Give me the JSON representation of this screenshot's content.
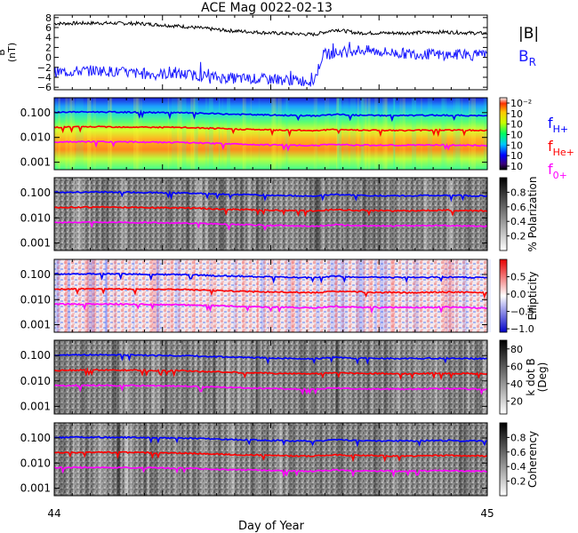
{
  "title": "ACE Mag 0022-02-13",
  "xlabel": "Day of Year",
  "x_ticks": [
    "44",
    "45"
  ],
  "colors": {
    "B_total": "#000000",
    "B_R": "#1a1aff",
    "f_Hplus": "#0000ff",
    "f_Heplus": "#ff0000",
    "f_Oplus": "#ff00ff"
  },
  "chart_data": [
    {
      "type": "line",
      "panel": "magnetic-field",
      "ylabel": "B\n(nT)",
      "ylabel_lines": [
        "B",
        "(nT)"
      ],
      "ylim": [
        -6.5,
        8.5
      ],
      "y_ticks": [
        "8",
        "6",
        "4",
        "2",
        "0",
        "−2",
        "−4",
        "−6"
      ],
      "y_tick_values": [
        8,
        6,
        4,
        2,
        0,
        -2,
        -4,
        -6
      ],
      "x_range": [
        44,
        45
      ],
      "legend": [
        {
          "text": "|B|",
          "sub": "",
          "color": "#000000"
        },
        {
          "text": "B",
          "sub": "R",
          "color": "#1a1aff"
        }
      ],
      "series": [
        {
          "name": "|B|",
          "color": "#000000",
          "x": [
            44.0,
            44.1,
            44.2,
            44.3,
            44.4,
            44.5,
            44.6,
            44.65,
            44.7,
            44.8,
            44.9,
            45.0
          ],
          "y": [
            6.8,
            6.9,
            6.8,
            6.2,
            5.4,
            4.9,
            4.6,
            5.6,
            4.9,
            4.9,
            5.1,
            4.8
          ]
        },
        {
          "name": "B_R",
          "color": "#1a1aff",
          "x": [
            44.0,
            44.1,
            44.2,
            44.3,
            44.4,
            44.5,
            44.6,
            44.62,
            44.7,
            44.8,
            44.9,
            45.0
          ],
          "y": [
            -3.0,
            -2.6,
            -3.3,
            -3.4,
            -4.2,
            -4.4,
            -4.8,
            0.5,
            1.5,
            0.8,
            0.5,
            0.4
          ]
        }
      ]
    },
    {
      "type": "heatmap",
      "panel": "power-spectrum",
      "y_scale": "log",
      "ylim": [
        0.0005,
        0.4
      ],
      "y_ticks": [
        "0.100",
        "0.010",
        "0.001"
      ],
      "y_tick_values": [
        0.1,
        0.01,
        0.001
      ],
      "colorbar": {
        "scale": "rainbow",
        "labels": [
          "10⁻²",
          "10",
          "10",
          "10",
          "10",
          "10",
          "10"
        ]
      },
      "legend": [
        {
          "text": "f",
          "sub": "H+",
          "color": "#0000ff"
        },
        {
          "text": "f",
          "sub": "He+",
          "color": "#ff0000"
        },
        {
          "text": "f",
          "sub": "0+",
          "color": "#ff00ff"
        }
      ]
    },
    {
      "type": "heatmap",
      "panel": "polarization",
      "y_scale": "log",
      "ylim": [
        0.0005,
        0.4
      ],
      "y_ticks": [
        "0.100",
        "0.010",
        "0.001"
      ],
      "y_tick_values": [
        0.1,
        0.01,
        0.001
      ],
      "colorbar": {
        "scale": "gray",
        "label": "% Polarization",
        "labels": [
          "0.8",
          "0.6",
          "0.4",
          "0.2"
        ],
        "values": [
          0.8,
          0.6,
          0.4,
          0.2
        ],
        "range": [
          0,
          1.0
        ]
      }
    },
    {
      "type": "heatmap",
      "panel": "ellipticity",
      "y_scale": "log",
      "ylim": [
        0.0005,
        0.4
      ],
      "y_ticks": [
        "0.100",
        "0.010",
        "0.001"
      ],
      "y_tick_values": [
        0.1,
        0.01,
        0.001
      ],
      "colorbar": {
        "scale": "bwr",
        "label": "Ellipticity",
        "labels": [
          "0.5",
          "0.0",
          "−0.5",
          "−1.0"
        ],
        "values": [
          0.5,
          0.0,
          -0.5,
          -1.0
        ],
        "range": [
          -1.1,
          1.0
        ]
      }
    },
    {
      "type": "heatmap",
      "panel": "k-dot-b",
      "y_scale": "log",
      "ylim": [
        0.0005,
        0.4
      ],
      "y_ticks": [
        "0.100",
        "0.010",
        "0.001"
      ],
      "y_tick_values": [
        0.1,
        0.01,
        0.001
      ],
      "colorbar": {
        "scale": "gray",
        "label": "k dot B\n(Deg)",
        "label_lines": [
          "k dot B",
          "(Deg)"
        ],
        "labels": [
          "80",
          "60",
          "40",
          "20"
        ],
        "values": [
          80,
          60,
          40,
          20
        ],
        "range": [
          5,
          90
        ]
      }
    },
    {
      "type": "heatmap",
      "panel": "coherency",
      "y_scale": "log",
      "ylim": [
        0.0005,
        0.4
      ],
      "y_ticks": [
        "0.100",
        "0.010",
        "0.001"
      ],
      "y_tick_values": [
        0.1,
        0.01,
        0.001
      ],
      "colorbar": {
        "scale": "gray",
        "label": "Coherency",
        "labels": [
          "0.8",
          "0.6",
          "0.4",
          "0.2"
        ],
        "values": [
          0.8,
          0.6,
          0.4,
          0.2
        ],
        "range": [
          0,
          1.0
        ]
      }
    }
  ],
  "ion_cyclotron_lines": {
    "x": [
      44.0,
      44.1,
      44.2,
      44.3,
      44.4,
      44.5,
      44.6,
      44.65,
      44.7,
      44.8,
      44.9,
      45.0
    ],
    "f_Hplus": [
      0.105,
      0.107,
      0.103,
      0.098,
      0.087,
      0.08,
      0.074,
      0.085,
      0.078,
      0.076,
      0.079,
      0.074
    ],
    "f_Heplus": [
      0.026,
      0.027,
      0.026,
      0.025,
      0.022,
      0.02,
      0.019,
      0.021,
      0.02,
      0.019,
      0.02,
      0.019
    ],
    "f_Oplus": [
      0.0066,
      0.0067,
      0.0065,
      0.0062,
      0.0055,
      0.005,
      0.0047,
      0.0053,
      0.0049,
      0.0048,
      0.005,
      0.0046
    ]
  }
}
